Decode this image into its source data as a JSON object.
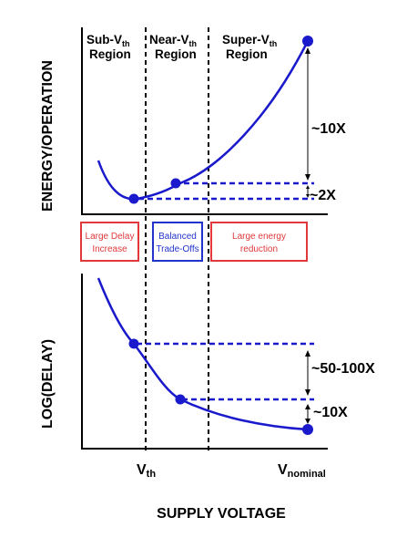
{
  "regions": {
    "sub": {
      "name": "Sub-V",
      "sub": "th",
      "line2": "Region"
    },
    "near": {
      "name": "Near-V",
      "sub": "th",
      "line2": "Region"
    },
    "super": {
      "name": "Super-V",
      "sub": "th",
      "line2": "Region"
    }
  },
  "top_panel": {
    "ylabel": "ENERGY/OPERATION",
    "annotation_large": "~10X",
    "annotation_small": "~2X"
  },
  "boxes": {
    "left": {
      "line1": "Large Delay",
      "line2": "Increase",
      "color": "#e0383b"
    },
    "middle": {
      "line1": "Balanced",
      "line2": "Trade-Offs",
      "color": "#2233cc"
    },
    "right": {
      "line1": "Large energy",
      "line2": "reduction",
      "color": "#e0383b"
    }
  },
  "bottom_panel": {
    "ylabel": "LOG(DELAY)",
    "annotation_large": "~50-100X",
    "annotation_small": "~10X"
  },
  "xaxis": {
    "tick_vth": "V",
    "tick_vth_sub": "th",
    "tick_nominal": "V",
    "tick_nominal_sub": "nominal",
    "label": "SUPPLY VOLTAGE"
  },
  "colors": {
    "curve": "#1a1acc",
    "axis": "#000000"
  }
}
